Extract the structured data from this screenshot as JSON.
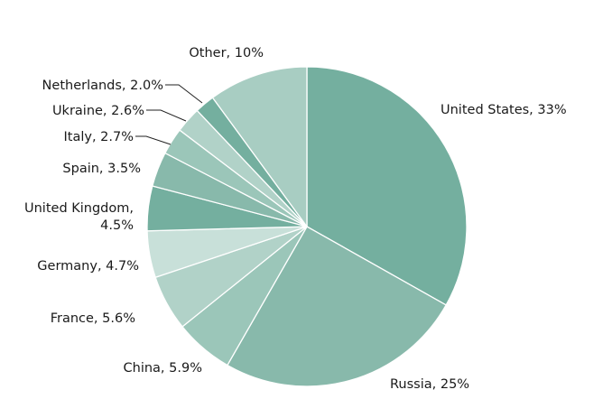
{
  "chart_data": {
    "type": "pie",
    "title": "",
    "slices": [
      {
        "category": "United States",
        "value": 33,
        "value_label": "33%",
        "color": "#74af9f"
      },
      {
        "category": "Russia",
        "value": 25,
        "value_label": "25%",
        "color": "#88b9ab"
      },
      {
        "category": "China",
        "value": 5.9,
        "value_label": "5.9%",
        "color": "#9bc6b9"
      },
      {
        "category": "France",
        "value": 5.6,
        "value_label": "5.6%",
        "color": "#b1d2c8"
      },
      {
        "category": "Germany",
        "value": 4.7,
        "value_label": "4.7%",
        "color": "#c8e0d9"
      },
      {
        "category": "United Kingdom",
        "value": 4.5,
        "value_label": "4.5%",
        "color": "#74af9f"
      },
      {
        "category": "Spain",
        "value": 3.5,
        "value_label": "3.5%",
        "color": "#88b9ab"
      },
      {
        "category": "Italy",
        "value": 2.7,
        "value_label": "2.7%",
        "color": "#9bc6b9"
      },
      {
        "category": "Ukraine",
        "value": 2.6,
        "value_label": "2.6%",
        "color": "#b1d2c8"
      },
      {
        "category": "Netherlands",
        "value": 2.0,
        "value_label": "2.0%",
        "color": "#74af9f"
      },
      {
        "category": "Other",
        "value": 10,
        "value_label": "10%",
        "color": "#a8cdc2"
      }
    ],
    "start_angle": "12 o'clock",
    "direction": "clockwise",
    "legend": "none",
    "labels": "outside slices, category and percentage"
  }
}
